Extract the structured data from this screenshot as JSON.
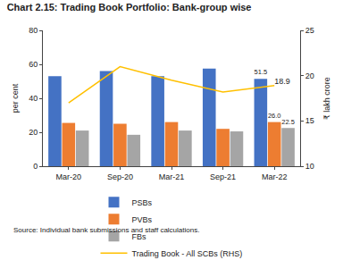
{
  "chart_data": {
    "type": "bar",
    "title": "Chart 2.15: Trading Book Portfolio: Bank-group wise",
    "source": "Source: Individual bank submissions and staff calculations.",
    "y_label": "per cent",
    "y2_label": "₹ lakh crore",
    "categories": [
      "Mar-20",
      "Sep-20",
      "Mar-21",
      "Sep-21",
      "Mar-22"
    ],
    "series": [
      {
        "name": "PSBs",
        "type": "bar",
        "color": "#4472c4",
        "values": [
          53,
          56,
          53,
          57.5,
          51.5
        ],
        "value_labels": [
          null,
          null,
          null,
          null,
          "51.5"
        ]
      },
      {
        "name": "PVBs",
        "type": "bar",
        "color": "#ed7d31",
        "values": [
          25.5,
          25,
          26,
          22,
          26
        ],
        "value_labels": [
          null,
          null,
          null,
          null,
          "26.0"
        ]
      },
      {
        "name": "FBs",
        "type": "bar",
        "color": "#a5a5a5",
        "values": [
          21,
          18.5,
          21,
          20.5,
          22.5
        ],
        "value_labels": [
          null,
          null,
          null,
          null,
          "22.5"
        ]
      },
      {
        "name": "Trading Book - All SCBs (RHS)",
        "type": "line",
        "axis": "y2",
        "color": "#ffc000",
        "values": [
          17,
          21,
          19.5,
          18.2,
          18.9
        ],
        "value_labels": [
          null,
          null,
          null,
          null,
          "18.9"
        ]
      }
    ],
    "ylim": [
      0,
      80
    ],
    "yticks": [
      0,
      20,
      40,
      60,
      80
    ],
    "y2lim": [
      10,
      25
    ],
    "y2ticks": [
      10,
      15,
      20,
      25
    ],
    "data_labels": true,
    "legend": "bottom",
    "grid": false
  }
}
